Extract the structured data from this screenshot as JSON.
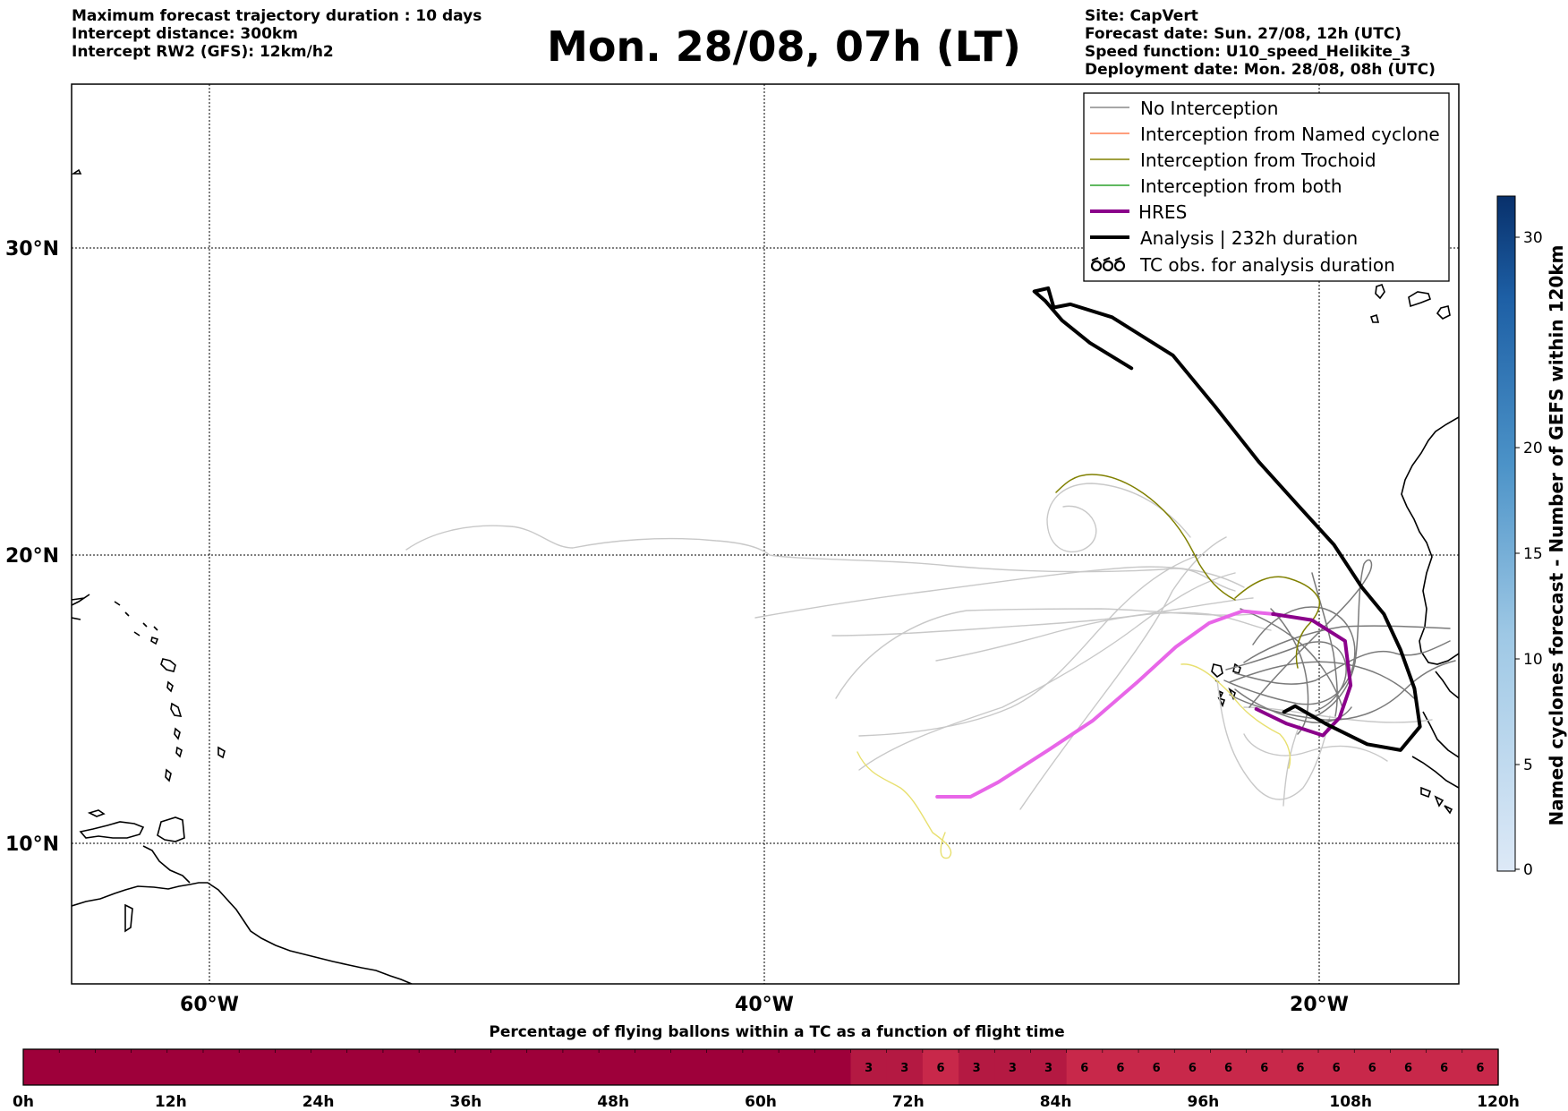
{
  "header": {
    "left": [
      "Maximum forecast trajectory duration : 10 days",
      "Intercept distance: 300km",
      "Intercept RW2 (GFS):  12km/h2"
    ],
    "title": "Mon. 28/08, 07h (LT)",
    "right": [
      "Site: CapVert",
      "Forecast date: Sun. 27/08, 12h (UTC)",
      "Speed function: U10_speed_Helikite_3",
      "Deployment date: Mon. 28/08, 08h (UTC)"
    ]
  },
  "map": {
    "lat_labels": [
      "30°N",
      "20°N",
      "10°N"
    ],
    "lon_labels": [
      "60°W",
      "40°W",
      "20°W"
    ],
    "extent": {
      "lon_min": -65,
      "lon_max": -15,
      "lat_min": 5.4,
      "lat_max": 34.7
    },
    "gridlines": {
      "lats": [
        30,
        20,
        10
      ],
      "lons": [
        -60,
        -40,
        -20
      ],
      "style": "dotted"
    }
  },
  "legend": {
    "position": "top-right",
    "items": [
      {
        "label": "No Interception",
        "color": "#8a8a8a",
        "kind": "line"
      },
      {
        "label": "Interception from Named cyclone",
        "color": "#ff7f50",
        "kind": "line"
      },
      {
        "label": "Interception from Trochoid",
        "color": "#808000",
        "kind": "line"
      },
      {
        "label": "Interception from both",
        "color": "#2ca02c",
        "kind": "line"
      },
      {
        "label": "HRES",
        "color": "#8b008b",
        "kind": "thick"
      },
      {
        "label": "Analysis | 232h duration",
        "color": "#000000",
        "kind": "thick"
      },
      {
        "label": "TC obs. for analysis duration",
        "color": "#000000",
        "kind": "symbol"
      }
    ]
  },
  "colorbar": {
    "label": "Named cyclones forecast - Number of GEFS within 120km",
    "ticks": [
      "0",
      "5",
      "10",
      "15",
      "20",
      "30"
    ],
    "range": [
      0,
      32
    ]
  },
  "bottom_bar": {
    "title": "Percentage of flying ballons within a TC as a function of flight time",
    "tick_labels": [
      "0h",
      "12h",
      "24h",
      "36h",
      "48h",
      "60h",
      "72h",
      "84h",
      "96h",
      "108h",
      "120h"
    ],
    "cells": [
      "",
      "",
      "",
      "",
      "",
      "",
      "",
      "",
      "",
      "",
      "",
      "",
      "",
      "",
      "",
      "",
      "",
      "",
      "",
      "",
      "",
      "",
      "",
      "3",
      "3",
      "6",
      "3",
      "3",
      "3",
      "6",
      "6",
      "6",
      "6",
      "6",
      "6",
      "6",
      "6",
      "6",
      "6",
      "6",
      "6"
    ],
    "colors": {
      "zero": "#9e003a",
      "low": "#b41942",
      "mid": "#c8284a"
    }
  },
  "chart_data": {
    "type": "map-trajectories",
    "analysis_track": [
      [
        -26.8,
        26.1
      ],
      [
        -28.3,
        26.9
      ],
      [
        -29.3,
        27.6
      ],
      [
        -29.9,
        28.2
      ],
      [
        -30.3,
        28.5
      ],
      [
        -29.8,
        28.6
      ],
      [
        -29.6,
        28.0
      ],
      [
        -29.0,
        28.1
      ],
      [
        -27.5,
        27.7
      ],
      [
        -25.3,
        26.5
      ],
      [
        -23.8,
        24.9
      ],
      [
        -22.2,
        23.1
      ],
      [
        -20.8,
        21.7
      ],
      [
        -19.5,
        20.4
      ],
      [
        -18.5,
        19.0
      ],
      [
        -17.7,
        18.1
      ],
      [
        -17.1,
        16.9
      ],
      [
        -16.6,
        15.6
      ],
      [
        -16.4,
        14.3
      ],
      [
        -17.1,
        13.5
      ],
      [
        -18.3,
        13.7
      ],
      [
        -19.8,
        14.4
      ],
      [
        -20.9,
        15.0
      ],
      [
        -21.3,
        14.8
      ]
    ],
    "hres_track": [
      [
        -33.8,
        11.9
      ],
      [
        -32.6,
        11.9
      ],
      [
        -31.6,
        12.4
      ],
      [
        -29.8,
        13.5
      ],
      [
        -28.2,
        14.5
      ],
      [
        -26.6,
        15.8
      ],
      [
        -25.2,
        17.0
      ],
      [
        -24.0,
        17.8
      ],
      [
        -22.8,
        18.2
      ],
      [
        -21.7,
        18.1
      ],
      [
        -20.3,
        17.9
      ],
      [
        -19.1,
        17.2
      ],
      [
        -18.9,
        15.7
      ],
      [
        -19.3,
        14.6
      ],
      [
        -19.9,
        14.0
      ],
      [
        -21.2,
        14.4
      ],
      [
        -22.3,
        14.9
      ]
    ]
  }
}
